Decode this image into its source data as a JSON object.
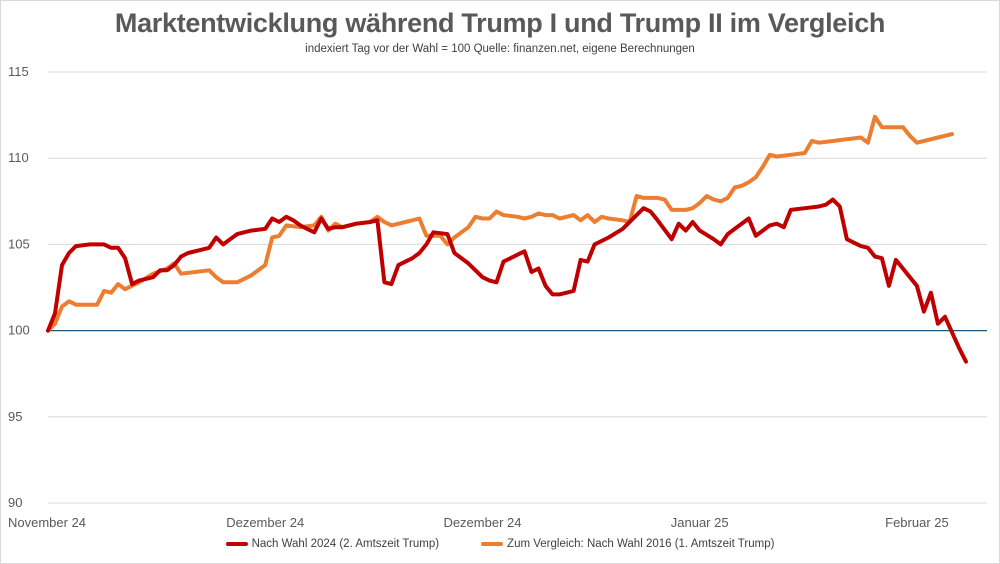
{
  "chart_data": {
    "type": "line",
    "title": "Marktentwicklung während Trump I und Trump II im Vergleich",
    "subtitle": "indexiert Tag vor der Wahl = 100 Quelle: finanzen.net, eigene Berechnungen",
    "ylim": [
      90,
      115
    ],
    "yticks": [
      90,
      95,
      100,
      105,
      110,
      115
    ],
    "x_count": 135,
    "xlabel": "",
    "ylabel": "",
    "xticks": [
      {
        "index": 0,
        "label": "November 24"
      },
      {
        "index": 31,
        "label": "Dezember 24"
      },
      {
        "index": 62,
        "label": "Dezember 24"
      },
      {
        "index": 93,
        "label": "Januar 25"
      },
      {
        "index": 124,
        "label": "Februar 25"
      }
    ],
    "reference_line": 100,
    "grid": true,
    "legend_position": "bottom",
    "series": [
      {
        "name": "Nach Wahl 2024 (2. Amtszeit Trump)",
        "color": "#c00000",
        "points": [
          [
            0,
            100
          ],
          [
            1,
            101
          ],
          [
            2,
            103.8
          ],
          [
            3,
            104.5
          ],
          [
            4,
            104.9
          ],
          [
            6,
            105
          ],
          [
            7,
            105
          ],
          [
            8,
            105
          ],
          [
            9,
            104.8
          ],
          [
            10,
            104.8
          ],
          [
            11,
            104.2
          ],
          [
            12,
            102.7
          ],
          [
            13,
            102.9
          ],
          [
            15,
            103.1
          ],
          [
            16,
            103.5
          ],
          [
            17,
            103.5
          ],
          [
            18,
            103.8
          ],
          [
            19,
            104.3
          ],
          [
            20,
            104.5
          ],
          [
            22,
            104.7
          ],
          [
            23,
            104.8
          ],
          [
            24,
            105.4
          ],
          [
            25,
            105
          ],
          [
            26,
            105.3
          ],
          [
            27,
            105.6
          ],
          [
            29,
            105.8
          ],
          [
            31,
            105.9
          ],
          [
            32,
            106.5
          ],
          [
            33,
            106.3
          ],
          [
            34,
            106.6
          ],
          [
            35,
            106.4
          ],
          [
            36,
            106.1
          ],
          [
            37,
            105.9
          ],
          [
            38,
            105.7
          ],
          [
            39,
            106.5
          ],
          [
            40,
            105.9
          ],
          [
            41,
            106
          ],
          [
            42,
            106
          ],
          [
            44,
            106.2
          ],
          [
            46,
            106.3
          ],
          [
            47,
            106.4
          ],
          [
            48,
            102.8
          ],
          [
            49,
            102.7
          ],
          [
            50,
            103.8
          ],
          [
            52,
            104.2
          ],
          [
            53,
            104.5
          ],
          [
            54,
            105
          ],
          [
            55,
            105.7
          ],
          [
            57,
            105.6
          ],
          [
            58,
            104.5
          ],
          [
            60,
            103.9
          ],
          [
            62,
            103.1
          ],
          [
            63,
            102.9
          ],
          [
            64,
            102.8
          ],
          [
            65,
            104
          ],
          [
            66,
            104.2
          ],
          [
            67,
            104.4
          ],
          [
            68,
            104.6
          ],
          [
            69,
            103.4
          ],
          [
            70,
            103.6
          ],
          [
            71,
            102.6
          ],
          [
            72,
            102.1
          ],
          [
            73,
            102.1
          ],
          [
            74,
            102.2
          ],
          [
            75,
            102.3
          ],
          [
            76,
            104.1
          ],
          [
            77,
            104
          ],
          [
            78,
            105
          ],
          [
            80,
            105.4
          ],
          [
            82,
            105.9
          ],
          [
            84,
            106.7
          ],
          [
            85,
            107.1
          ],
          [
            86,
            106.9
          ],
          [
            87,
            106.4
          ],
          [
            89,
            105.3
          ],
          [
            90,
            106.2
          ],
          [
            91,
            105.8
          ],
          [
            92,
            106.3
          ],
          [
            93,
            105.8
          ],
          [
            95,
            105.3
          ],
          [
            96,
            105
          ],
          [
            97,
            105.6
          ],
          [
            98,
            105.9
          ],
          [
            100,
            106.5
          ],
          [
            101,
            105.5
          ],
          [
            102,
            105.8
          ],
          [
            103,
            106.1
          ],
          [
            104,
            106.2
          ],
          [
            105,
            106
          ],
          [
            106,
            107
          ],
          [
            108,
            107.1
          ],
          [
            110,
            107.2
          ],
          [
            111,
            107.3
          ],
          [
            112,
            107.6
          ],
          [
            113,
            107.2
          ],
          [
            114,
            105.3
          ],
          [
            115,
            105.1
          ],
          [
            116,
            104.9
          ],
          [
            117,
            104.8
          ],
          [
            118,
            104.3
          ],
          [
            119,
            104.2
          ],
          [
            120,
            102.6
          ],
          [
            121,
            104.1
          ],
          [
            122,
            103.6
          ],
          [
            123,
            103.1
          ],
          [
            124,
            102.6
          ],
          [
            125,
            101.1
          ],
          [
            126,
            102.2
          ],
          [
            127,
            100.4
          ],
          [
            128,
            100.8
          ],
          [
            129,
            99.9
          ],
          [
            130,
            99
          ],
          [
            131,
            98.2
          ]
        ]
      },
      {
        "name": "Zum Vergleich: Nach Wahl 2016 (1. Amtszeit Trump)",
        "color": "#ed7d31",
        "points": [
          [
            0,
            100
          ],
          [
            1,
            100.4
          ],
          [
            2,
            101.4
          ],
          [
            3,
            101.7
          ],
          [
            4,
            101.5
          ],
          [
            6,
            101.5
          ],
          [
            7,
            101.5
          ],
          [
            8,
            102.3
          ],
          [
            9,
            102.2
          ],
          [
            10,
            102.7
          ],
          [
            11,
            102.4
          ],
          [
            13,
            102.8
          ],
          [
            15,
            103.3
          ],
          [
            17,
            103.6
          ],
          [
            18,
            103.9
          ],
          [
            19,
            103.3
          ],
          [
            21,
            103.4
          ],
          [
            23,
            103.5
          ],
          [
            24,
            103.1
          ],
          [
            25,
            102.8
          ],
          [
            27,
            102.8
          ],
          [
            29,
            103.2
          ],
          [
            31,
            103.8
          ],
          [
            32,
            105.4
          ],
          [
            33,
            105.5
          ],
          [
            34,
            106.1
          ],
          [
            36,
            106
          ],
          [
            38,
            106.1
          ],
          [
            39,
            106.6
          ],
          [
            40,
            105.8
          ],
          [
            41,
            106.2
          ],
          [
            42,
            106
          ],
          [
            44,
            106.2
          ],
          [
            46,
            106.3
          ],
          [
            47,
            106.6
          ],
          [
            48,
            106.3
          ],
          [
            49,
            106.1
          ],
          [
            51,
            106.3
          ],
          [
            52,
            106.4
          ],
          [
            53,
            106.5
          ],
          [
            54,
            105.5
          ],
          [
            56,
            105.5
          ],
          [
            57,
            105
          ],
          [
            58,
            105.4
          ],
          [
            60,
            106
          ],
          [
            61,
            106.6
          ],
          [
            62,
            106.5
          ],
          [
            63,
            106.5
          ],
          [
            64,
            106.9
          ],
          [
            65,
            106.7
          ],
          [
            67,
            106.6
          ],
          [
            68,
            106.5
          ],
          [
            69,
            106.6
          ],
          [
            70,
            106.8
          ],
          [
            71,
            106.7
          ],
          [
            72,
            106.7
          ],
          [
            73,
            106.5
          ],
          [
            74,
            106.6
          ],
          [
            75,
            106.7
          ],
          [
            76,
            106.4
          ],
          [
            77,
            106.7
          ],
          [
            78,
            106.3
          ],
          [
            79,
            106.6
          ],
          [
            80,
            106.5
          ],
          [
            82,
            106.4
          ],
          [
            83,
            106.3
          ],
          [
            84,
            107.8
          ],
          [
            85,
            107.7
          ],
          [
            87,
            107.7
          ],
          [
            88,
            107.6
          ],
          [
            89,
            107
          ],
          [
            90,
            107
          ],
          [
            91,
            107
          ],
          [
            92,
            107.1
          ],
          [
            93,
            107.4
          ],
          [
            94,
            107.8
          ],
          [
            95,
            107.6
          ],
          [
            96,
            107.5
          ],
          [
            97,
            107.7
          ],
          [
            98,
            108.3
          ],
          [
            99,
            108.4
          ],
          [
            100,
            108.6
          ],
          [
            101,
            108.9
          ],
          [
            102,
            109.5
          ],
          [
            103,
            110.2
          ],
          [
            104,
            110.1
          ],
          [
            106,
            110.2
          ],
          [
            108,
            110.3
          ],
          [
            109,
            111
          ],
          [
            110,
            110.9
          ],
          [
            112,
            111
          ],
          [
            114,
            111.1
          ],
          [
            116,
            111.2
          ],
          [
            117,
            110.9
          ],
          [
            118,
            112.4
          ],
          [
            119,
            111.8
          ],
          [
            120,
            111.8
          ],
          [
            122,
            111.8
          ],
          [
            123,
            111.3
          ],
          [
            124,
            110.9
          ],
          [
            125,
            111
          ],
          [
            127,
            111.2
          ],
          [
            128,
            111.3
          ],
          [
            129,
            111.4
          ]
        ]
      }
    ]
  }
}
